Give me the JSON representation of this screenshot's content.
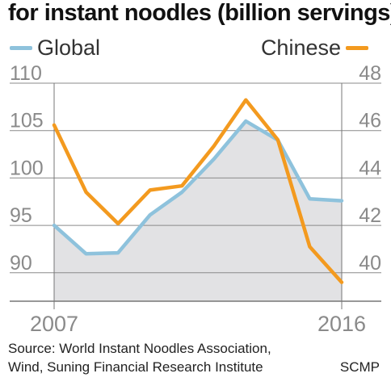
{
  "chart_data": {
    "type": "line",
    "title": "for instant noodles (billion servings)",
    "x": [
      2007,
      2008,
      2009,
      2010,
      2011,
      2012,
      2013,
      2014,
      2015,
      2016
    ],
    "x_tick_labels": [
      "2007",
      "2016"
    ],
    "series": [
      {
        "name": "Global",
        "axis": "left",
        "color": "#8ec2dc",
        "values": [
          95.0,
          92.0,
          92.1,
          96.1,
          98.5,
          102.0,
          106.0,
          104.0,
          97.8,
          97.6
        ]
      },
      {
        "name": "Chinese",
        "axis": "right",
        "color": "#f39a1f",
        "values": [
          46.0,
          42.8,
          41.3,
          42.9,
          43.1,
          45.0,
          47.2,
          45.3,
          40.2,
          38.5
        ]
      }
    ],
    "y_left": {
      "ylim": [
        87,
        110
      ],
      "ticks": [
        "110",
        "105",
        "100",
        "95",
        "90"
      ]
    },
    "y_right": {
      "ylim": [
        37.6,
        48
      ],
      "ticks": [
        "48",
        "46",
        "44",
        "42",
        "40"
      ]
    },
    "grid": true,
    "legend": "top"
  },
  "source": "Source: World Instant Noodles Association,\nWind, Suning Financial Research Institute",
  "credit": "SCMP",
  "colors": {
    "area_fill": "#e2e2e4",
    "grid": "#8a8a8a",
    "tick_text": "#8a8a8a"
  }
}
